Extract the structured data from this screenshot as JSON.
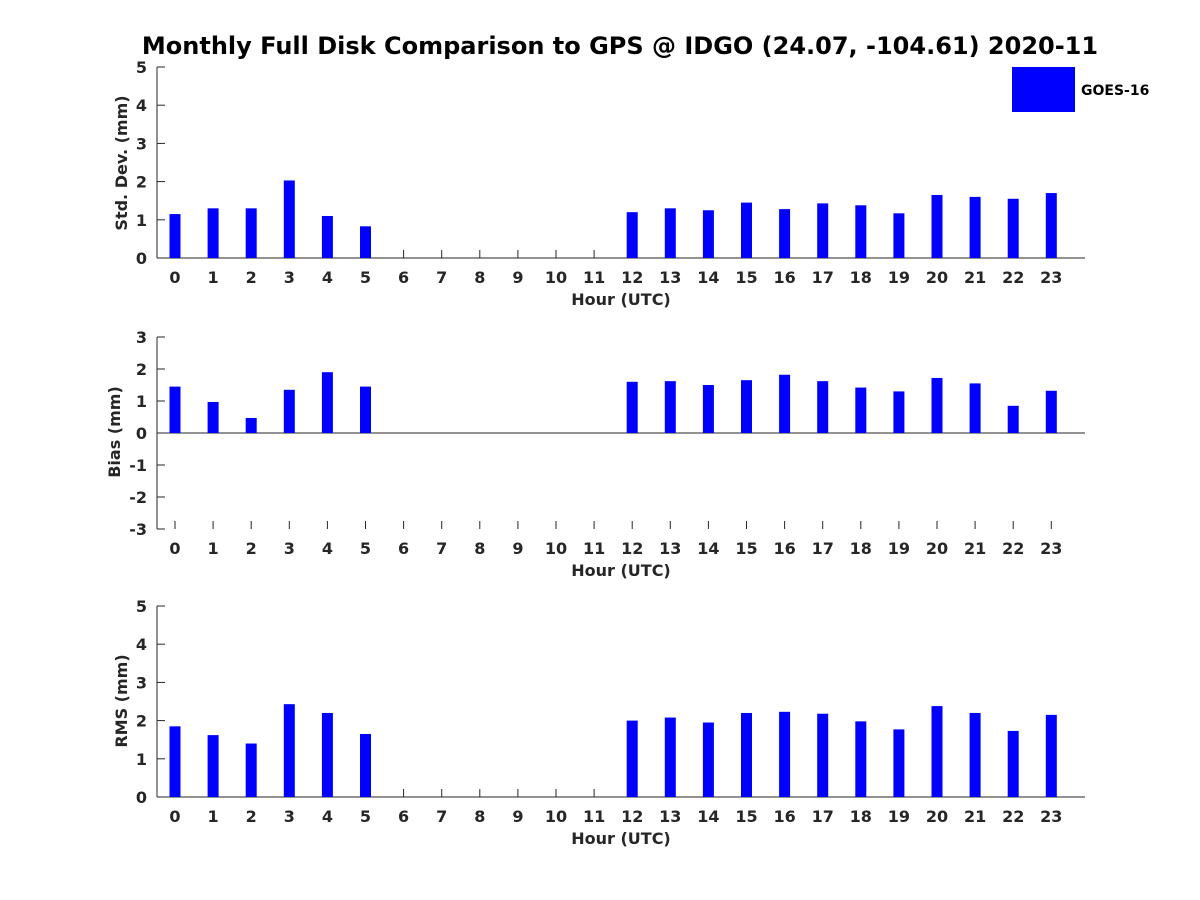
{
  "figure": {
    "title": "Monthly Full Disk Comparison to GPS @ IDGO (24.07, -104.61) 2020-11",
    "legend": {
      "label": "GOES-16",
      "color": "#0000ff",
      "placement": "top-right"
    }
  },
  "chart_data": [
    {
      "type": "bar",
      "categories": [
        "0",
        "1",
        "2",
        "3",
        "4",
        "5",
        "6",
        "7",
        "8",
        "9",
        "10",
        "11",
        "12",
        "13",
        "14",
        "15",
        "16",
        "17",
        "18",
        "19",
        "20",
        "21",
        "22",
        "23"
      ],
      "series": [
        {
          "name": "GOES-16",
          "color": "#0000ff",
          "values": [
            1.15,
            1.3,
            1.3,
            2.03,
            1.1,
            0.83,
            null,
            null,
            null,
            null,
            null,
            null,
            1.2,
            1.3,
            1.25,
            1.45,
            1.28,
            1.43,
            1.38,
            1.17,
            1.65,
            1.6,
            1.55,
            1.7
          ]
        }
      ],
      "xlabel": "Hour (UTC)",
      "ylabel": "Std. Dev. (mm)",
      "ylim": [
        0,
        5
      ],
      "yticks": [
        "0",
        "1",
        "2",
        "3",
        "4",
        "5"
      ],
      "grid": false
    },
    {
      "type": "bar",
      "categories": [
        "0",
        "1",
        "2",
        "3",
        "4",
        "5",
        "6",
        "7",
        "8",
        "9",
        "10",
        "11",
        "12",
        "13",
        "14",
        "15",
        "16",
        "17",
        "18",
        "19",
        "20",
        "21",
        "22",
        "23"
      ],
      "series": [
        {
          "name": "GOES-16",
          "color": "#0000ff",
          "values": [
            1.45,
            0.97,
            0.47,
            1.35,
            1.9,
            1.45,
            null,
            null,
            null,
            null,
            null,
            null,
            1.6,
            1.62,
            1.5,
            1.65,
            1.82,
            1.62,
            1.42,
            1.3,
            1.72,
            1.55,
            0.85,
            1.32
          ]
        }
      ],
      "xlabel": "Hour (UTC)",
      "ylabel": "Bias (mm)",
      "ylim": [
        -3,
        3
      ],
      "yticks": [
        "-3",
        "-2",
        "-1",
        "0",
        "1",
        "2",
        "3"
      ],
      "grid": false
    },
    {
      "type": "bar",
      "categories": [
        "0",
        "1",
        "2",
        "3",
        "4",
        "5",
        "6",
        "7",
        "8",
        "9",
        "10",
        "11",
        "12",
        "13",
        "14",
        "15",
        "16",
        "17",
        "18",
        "19",
        "20",
        "21",
        "22",
        "23"
      ],
      "series": [
        {
          "name": "GOES-16",
          "color": "#0000ff",
          "values": [
            1.85,
            1.62,
            1.4,
            2.43,
            2.2,
            1.65,
            null,
            null,
            null,
            null,
            null,
            null,
            2.0,
            2.08,
            1.95,
            2.2,
            2.23,
            2.18,
            1.98,
            1.77,
            2.38,
            2.2,
            1.73,
            2.15
          ]
        }
      ],
      "xlabel": "Hour (UTC)",
      "ylabel": "RMS (mm)",
      "ylim": [
        0,
        5
      ],
      "yticks": [
        "0",
        "1",
        "2",
        "3",
        "4",
        "5"
      ],
      "grid": false
    }
  ]
}
